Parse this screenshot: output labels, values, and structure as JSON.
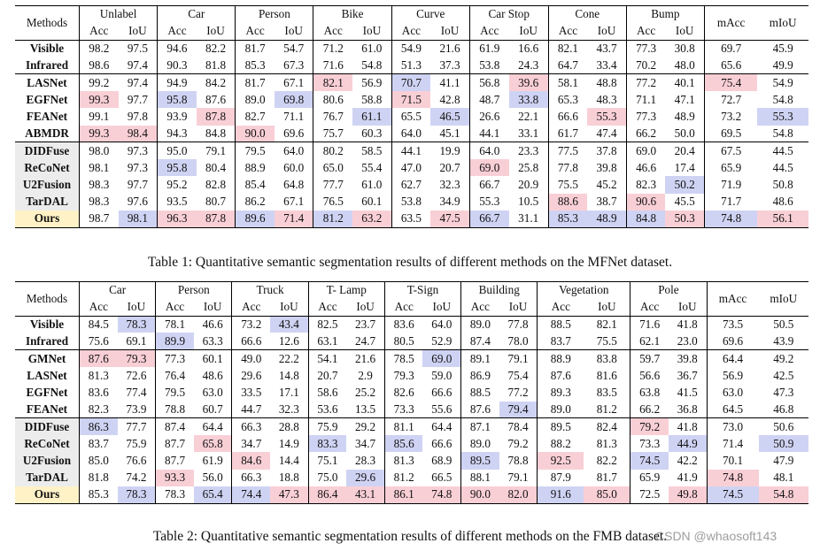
{
  "table1": {
    "methods_label": "Methods",
    "classes": [
      "Unlabel",
      "Car",
      "Person",
      "Bike",
      "Curve",
      "Car Stop",
      "Cone",
      "Bump"
    ],
    "sub_acc": "Acc",
    "sub_iou": "IoU",
    "macc_label": "mAcc",
    "miou_label": "mIoU",
    "groups": [
      [
        {
          "name": "Visible",
          "vals": [
            "98.2",
            "97.5",
            "94.6",
            "82.2",
            "81.7",
            "54.7",
            "71.2",
            "61.0",
            "54.9",
            "21.6",
            "61.9",
            "16.6",
            "82.1",
            "43.7",
            "77.3",
            "30.8",
            "69.7",
            "45.9"
          ],
          "hl": {}
        },
        {
          "name": "Infrared",
          "vals": [
            "98.6",
            "97.4",
            "90.3",
            "81.8",
            "85.3",
            "67.3",
            "71.6",
            "54.8",
            "51.3",
            "37.3",
            "53.8",
            "24.3",
            "64.7",
            "33.4",
            "70.2",
            "48.0",
            "65.6",
            "49.9"
          ],
          "hl": {}
        }
      ],
      [
        {
          "name": "LASNet",
          "vals": [
            "99.2",
            "97.4",
            "94.9",
            "84.2",
            "81.7",
            "67.1",
            "82.1",
            "56.9",
            "70.7",
            "41.1",
            "56.8",
            "39.6",
            "58.1",
            "48.8",
            "77.2",
            "40.1",
            "75.4",
            "54.9"
          ],
          "hl": {
            "6": "pink",
            "8": "blue",
            "11": "pink",
            "16": "pink"
          }
        },
        {
          "name": "EGFNet",
          "vals": [
            "99.3",
            "97.7",
            "95.8",
            "87.6",
            "89.0",
            "69.8",
            "80.6",
            "58.8",
            "71.5",
            "42.8",
            "48.7",
            "33.8",
            "65.3",
            "48.3",
            "71.1",
            "47.1",
            "72.7",
            "54.8"
          ],
          "hl": {
            "0": "pink",
            "2": "blue",
            "5": "blue",
            "8": "pink",
            "11": "blue"
          }
        },
        {
          "name": "FEANet",
          "vals": [
            "99.1",
            "97.8",
            "93.9",
            "87.8",
            "82.7",
            "71.1",
            "76.7",
            "61.1",
            "65.5",
            "46.5",
            "26.6",
            "22.1",
            "66.6",
            "55.3",
            "77.3",
            "48.9",
            "73.2",
            "55.3"
          ],
          "hl": {
            "3": "pink",
            "7": "blue",
            "9": "blue",
            "13": "pink",
            "17": "blue"
          }
        },
        {
          "name": "ABMDR",
          "vals": [
            "99.3",
            "98.4",
            "94.3",
            "84.8",
            "90.0",
            "69.6",
            "75.7",
            "60.3",
            "64.0",
            "45.1",
            "44.1",
            "33.1",
            "61.7",
            "47.4",
            "66.2",
            "50.0",
            "69.5",
            "54.8"
          ],
          "hl": {
            "0": "pink",
            "1": "pink",
            "4": "pink"
          }
        }
      ],
      [
        {
          "name": "DIDFuse",
          "vals": [
            "98.0",
            "97.3",
            "95.0",
            "79.1",
            "79.5",
            "64.0",
            "80.2",
            "58.5",
            "44.1",
            "19.9",
            "64.0",
            "23.3",
            "77.5",
            "37.8",
            "69.0",
            "20.4",
            "67.5",
            "44.5"
          ],
          "hl": {}
        },
        {
          "name": "ReCoNet",
          "vals": [
            "98.1",
            "97.3",
            "95.8",
            "80.4",
            "88.9",
            "60.0",
            "65.0",
            "55.4",
            "47.0",
            "20.7",
            "69.0",
            "25.8",
            "77.8",
            "39.8",
            "46.6",
            "17.4",
            "65.9",
            "44.5"
          ],
          "hl": {
            "2": "blue",
            "10": "pink"
          }
        },
        {
          "name": "U2Fusion",
          "vals": [
            "98.3",
            "97.7",
            "95.2",
            "82.8",
            "85.4",
            "64.8",
            "77.7",
            "61.0",
            "62.7",
            "32.3",
            "66.7",
            "20.9",
            "75.5",
            "45.2",
            "82.3",
            "50.2",
            "71.9",
            "50.8"
          ],
          "hl": {
            "15": "blue"
          }
        },
        {
          "name": "TarDAL",
          "vals": [
            "98.3",
            "97.6",
            "93.5",
            "80.7",
            "86.2",
            "67.1",
            "76.5",
            "60.1",
            "53.8",
            "34.9",
            "55.3",
            "10.5",
            "88.6",
            "38.7",
            "90.6",
            "45.5",
            "71.7",
            "48.6"
          ],
          "hl": {
            "12": "pink",
            "14": "pink"
          }
        },
        {
          "name": "Ours",
          "vals": [
            "98.7",
            "98.1",
            "96.3",
            "87.8",
            "89.6",
            "71.4",
            "81.2",
            "63.2",
            "63.5",
            "47.5",
            "66.7",
            "31.1",
            "85.3",
            "48.9",
            "84.8",
            "50.3",
            "74.8",
            "56.1"
          ],
          "hl": {
            "1": "blue",
            "2": "pink",
            "3": "pink",
            "4": "blue",
            "5": "pink",
            "6": "blue",
            "7": "pink",
            "9": "pink",
            "10": "blue",
            "12": "blue",
            "13": "blue",
            "14": "blue",
            "15": "pink",
            "16": "blue",
            "17": "pink"
          }
        }
      ]
    ],
    "caption": "Table 1: Quantitative semantic segmentation results of different methods on the MFNet dataset."
  },
  "table2": {
    "methods_label": "Methods",
    "classes": [
      "Car",
      "Person",
      "Truck",
      "T- Lamp",
      "T-Sign",
      "Building",
      "Vegetation",
      "Pole"
    ],
    "sub_acc": "Acc",
    "sub_iou": "IoU",
    "macc_label": "mAcc",
    "miou_label": "mIoU",
    "groups": [
      [
        {
          "name": "Visible",
          "vals": [
            "84.5",
            "78.3",
            "78.1",
            "46.6",
            "73.2",
            "43.4",
            "82.5",
            "23.7",
            "83.6",
            "64.0",
            "89.0",
            "77.8",
            "88.5",
            "82.1",
            "71.6",
            "41.8",
            "73.5",
            "50.5"
          ],
          "hl": {
            "1": "blue",
            "5": "blue"
          }
        },
        {
          "name": "Infrared",
          "vals": [
            "75.6",
            "69.1",
            "89.9",
            "63.3",
            "66.6",
            "12.6",
            "63.1",
            "24.7",
            "80.5",
            "52.9",
            "87.4",
            "78.0",
            "83.7",
            "75.5",
            "62.1",
            "23.0",
            "69.6",
            "43.9"
          ],
          "hl": {
            "2": "blue"
          }
        }
      ],
      [
        {
          "name": "GMNet",
          "vals": [
            "87.6",
            "79.3",
            "77.3",
            "60.1",
            "49.0",
            "22.2",
            "54.1",
            "21.6",
            "78.5",
            "69.0",
            "89.1",
            "79.1",
            "88.9",
            "83.8",
            "59.7",
            "39.8",
            "64.4",
            "49.2"
          ],
          "hl": {
            "0": "pink",
            "1": "pink",
            "9": "blue"
          }
        },
        {
          "name": "LASNet",
          "vals": [
            "81.3",
            "72.6",
            "76.4",
            "48.6",
            "29.6",
            "14.8",
            "20.7",
            "2.9",
            "79.3",
            "59.0",
            "86.9",
            "75.4",
            "87.6",
            "81.6",
            "56.6",
            "36.7",
            "56.9",
            "42.5"
          ],
          "hl": {}
        },
        {
          "name": "EGFNet",
          "vals": [
            "83.6",
            "77.4",
            "79.5",
            "63.0",
            "33.5",
            "17.1",
            "58.6",
            "25.2",
            "82.6",
            "66.6",
            "88.5",
            "77.2",
            "89.3",
            "83.5",
            "63.8",
            "41.5",
            "63.0",
            "47.3"
          ],
          "hl": {}
        },
        {
          "name": "FEANet",
          "vals": [
            "82.3",
            "73.9",
            "78.8",
            "60.7",
            "44.7",
            "32.3",
            "53.6",
            "13.5",
            "73.3",
            "55.6",
            "87.6",
            "79.4",
            "89.0",
            "81.2",
            "66.2",
            "36.8",
            "64.5",
            "46.8"
          ],
          "hl": {
            "11": "blue"
          }
        }
      ],
      [
        {
          "name": "DIDFuse",
          "vals": [
            "86.3",
            "77.7",
            "87.4",
            "64.4",
            "66.3",
            "28.8",
            "75.9",
            "29.2",
            "81.1",
            "64.4",
            "87.1",
            "78.4",
            "89.5",
            "82.4",
            "79.2",
            "41.8",
            "73.0",
            "50.6"
          ],
          "hl": {
            "0": "blue",
            "14": "pink"
          }
        },
        {
          "name": "ReCoNet",
          "vals": [
            "83.7",
            "75.9",
            "87.7",
            "65.8",
            "34.7",
            "14.9",
            "83.3",
            "34.7",
            "85.6",
            "66.6",
            "89.0",
            "79.2",
            "88.2",
            "81.3",
            "73.3",
            "44.9",
            "71.4",
            "50.9"
          ],
          "hl": {
            "3": "pink",
            "6": "blue",
            "8": "blue",
            "15": "blue",
            "17": "blue"
          }
        },
        {
          "name": "U2Fusion",
          "vals": [
            "85.0",
            "76.6",
            "87.7",
            "61.9",
            "84.6",
            "14.4",
            "75.1",
            "28.3",
            "81.3",
            "68.9",
            "89.5",
            "78.8",
            "92.5",
            "82.2",
            "74.5",
            "42.2",
            "70.1",
            "47.9"
          ],
          "hl": {
            "4": "pink",
            "10": "blue",
            "12": "pink",
            "14": "blue"
          }
        },
        {
          "name": "TarDAL",
          "vals": [
            "81.8",
            "74.2",
            "93.3",
            "56.0",
            "66.3",
            "18.8",
            "75.0",
            "29.6",
            "81.2",
            "66.5",
            "88.1",
            "79.1",
            "87.9",
            "81.7",
            "65.9",
            "41.9",
            "74.8",
            "48.1"
          ],
          "hl": {
            "2": "pink",
            "7": "blue",
            "16": "pink"
          }
        },
        {
          "name": "Ours",
          "vals": [
            "85.3",
            "78.3",
            "78.3",
            "65.4",
            "74.4",
            "47.3",
            "86.4",
            "43.1",
            "86.1",
            "74.8",
            "90.0",
            "82.0",
            "91.6",
            "85.0",
            "72.5",
            "49.8",
            "74.5",
            "54.8"
          ],
          "hl": {
            "1": "blue",
            "3": "blue",
            "4": "blue",
            "5": "pink",
            "6": "pink",
            "7": "pink",
            "8": "pink",
            "9": "pink",
            "10": "pink",
            "11": "pink",
            "12": "blue",
            "13": "pink",
            "15": "pink",
            "16": "blue",
            "17": "pink"
          }
        }
      ]
    ],
    "caption": "Table 2: Quantitative semantic segmentation results of different methods on the FMB dataset."
  },
  "watermark": "CSDN @whaosoft143"
}
